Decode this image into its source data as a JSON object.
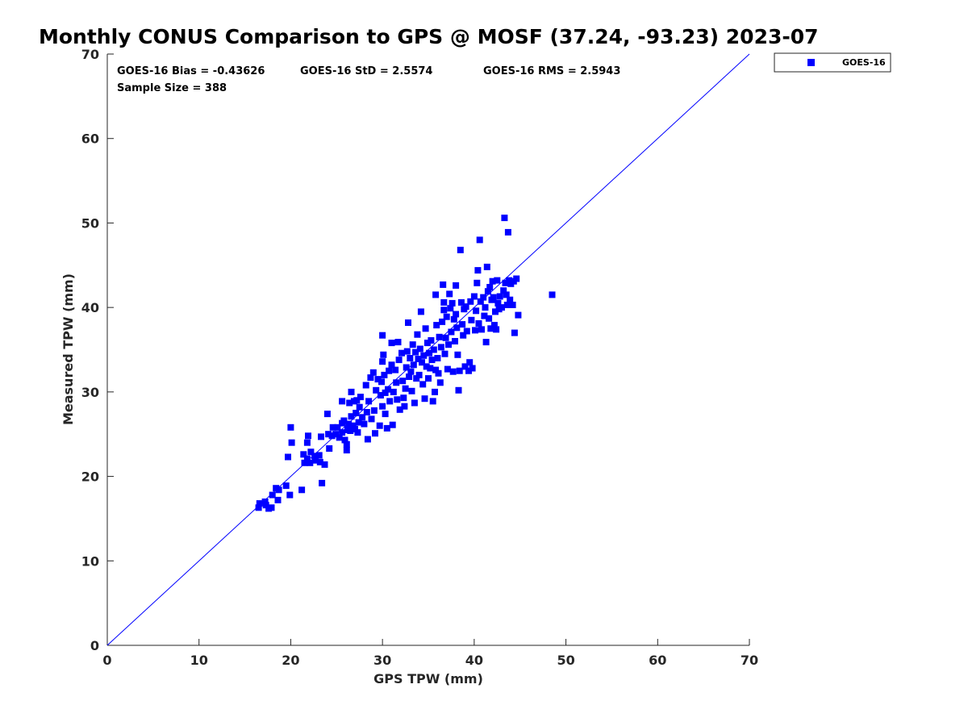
{
  "chart_data": {
    "type": "scatter",
    "title": "Monthly CONUS Comparison to GPS @ MOSF (37.24, -93.23) 2023-07",
    "xlabel": "GPS TPW (mm)",
    "ylabel": "Measured TPW (mm)",
    "xlim": [
      0,
      70
    ],
    "ylim": [
      0,
      70
    ],
    "xticks": [
      "0",
      "10",
      "20",
      "30",
      "40",
      "50",
      "60",
      "70"
    ],
    "yticks": [
      "0",
      "10",
      "20",
      "30",
      "40",
      "50",
      "60",
      "70"
    ],
    "grid": false,
    "legend_position": "top-right outside",
    "stats": {
      "bias": "GOES-16 Bias = -0.43626",
      "std": "GOES-16 StD = 2.5574",
      "rms": "GOES-16 RMS = 2.5943",
      "sample_size": "Sample Size = 388"
    },
    "reference_line": {
      "x": [
        0,
        70
      ],
      "y": [
        0,
        70
      ],
      "color": "#0000ff"
    },
    "series": [
      {
        "name": "GOES-16",
        "color": "#0000ff",
        "marker": "square",
        "points": [
          [
            16.5,
            16.3
          ],
          [
            16.6,
            16.8
          ],
          [
            17.3,
            16.6
          ],
          [
            17.6,
            16.2
          ],
          [
            17.2,
            17.0
          ],
          [
            17.9,
            16.3
          ],
          [
            18.0,
            17.8
          ],
          [
            18.4,
            18.6
          ],
          [
            18.6,
            17.2
          ],
          [
            18.7,
            18.4
          ],
          [
            19.5,
            18.9
          ],
          [
            19.9,
            17.8
          ],
          [
            19.7,
            22.3
          ],
          [
            20.1,
            24.0
          ],
          [
            20.0,
            25.8
          ],
          [
            21.2,
            18.4
          ],
          [
            21.4,
            22.6
          ],
          [
            21.5,
            21.6
          ],
          [
            21.8,
            22.1
          ],
          [
            21.8,
            24.0
          ],
          [
            21.9,
            24.8
          ],
          [
            22.1,
            21.6
          ],
          [
            22.2,
            22.9
          ],
          [
            22.6,
            22.4
          ],
          [
            22.7,
            21.9
          ],
          [
            23.1,
            22.5
          ],
          [
            23.2,
            21.7
          ],
          [
            23.3,
            24.7
          ],
          [
            23.4,
            19.2
          ],
          [
            23.7,
            21.4
          ],
          [
            24.0,
            27.4
          ],
          [
            24.1,
            25.0
          ],
          [
            24.2,
            23.3
          ],
          [
            24.5,
            24.8
          ],
          [
            24.6,
            25.8
          ],
          [
            24.9,
            25.0
          ],
          [
            25.1,
            25.8
          ],
          [
            25.3,
            24.6
          ],
          [
            25.6,
            26.3
          ],
          [
            25.6,
            25.2
          ],
          [
            25.6,
            28.9
          ],
          [
            25.8,
            26.6
          ],
          [
            25.9,
            24.3
          ],
          [
            26.1,
            23.1
          ],
          [
            26.1,
            23.8
          ],
          [
            26.2,
            25.5
          ],
          [
            26.3,
            26.2
          ],
          [
            26.4,
            28.7
          ],
          [
            26.5,
            25.4
          ],
          [
            26.6,
            27.1
          ],
          [
            26.6,
            30.0
          ],
          [
            26.8,
            26.0
          ],
          [
            26.9,
            28.9
          ],
          [
            27.0,
            25.6
          ],
          [
            27.1,
            27.5
          ],
          [
            27.2,
            29.0
          ],
          [
            27.3,
            25.2
          ],
          [
            27.4,
            26.4
          ],
          [
            27.5,
            28.2
          ],
          [
            27.6,
            29.4
          ],
          [
            27.8,
            27.0
          ],
          [
            28.0,
            26.2
          ],
          [
            28.2,
            30.8
          ],
          [
            28.3,
            27.6
          ],
          [
            28.4,
            24.4
          ],
          [
            28.5,
            28.9
          ],
          [
            28.7,
            31.7
          ],
          [
            28.8,
            26.8
          ],
          [
            29.0,
            32.3
          ],
          [
            29.1,
            27.8
          ],
          [
            29.2,
            25.1
          ],
          [
            29.3,
            30.2
          ],
          [
            29.5,
            31.5
          ],
          [
            29.7,
            26.0
          ],
          [
            29.8,
            29.6
          ],
          [
            29.9,
            31.2
          ],
          [
            30.0,
            28.3
          ],
          [
            30.0,
            33.6
          ],
          [
            30.0,
            36.7
          ],
          [
            30.1,
            34.4
          ],
          [
            30.2,
            32.0
          ],
          [
            30.3,
            27.4
          ],
          [
            30.3,
            29.9
          ],
          [
            30.5,
            25.7
          ],
          [
            30.6,
            30.3
          ],
          [
            30.7,
            32.5
          ],
          [
            30.8,
            28.9
          ],
          [
            31.0,
            33.2
          ],
          [
            31.0,
            35.8
          ],
          [
            31.1,
            26.1
          ],
          [
            31.2,
            30.0
          ],
          [
            31.4,
            32.6
          ],
          [
            31.5,
            31.1
          ],
          [
            31.6,
            29.1
          ],
          [
            31.7,
            35.9
          ],
          [
            31.8,
            33.8
          ],
          [
            31.9,
            27.9
          ],
          [
            32.1,
            34.6
          ],
          [
            32.2,
            31.3
          ],
          [
            32.3,
            29.3
          ],
          [
            32.4,
            28.3
          ],
          [
            32.5,
            30.4
          ],
          [
            32.6,
            32.9
          ],
          [
            32.7,
            34.8
          ],
          [
            32.8,
            38.2
          ],
          [
            32.9,
            31.8
          ],
          [
            33.0,
            34.0
          ],
          [
            33.1,
            32.4
          ],
          [
            33.2,
            30.1
          ],
          [
            33.3,
            35.6
          ],
          [
            33.4,
            33.2
          ],
          [
            33.5,
            28.7
          ],
          [
            33.6,
            34.7
          ],
          [
            33.7,
            31.6
          ],
          [
            33.8,
            36.8
          ],
          [
            33.9,
            33.9
          ],
          [
            34.0,
            32.0
          ],
          [
            34.1,
            35.1
          ],
          [
            34.2,
            39.5
          ],
          [
            34.3,
            33.5
          ],
          [
            34.4,
            30.9
          ],
          [
            34.5,
            34.3
          ],
          [
            34.6,
            29.2
          ],
          [
            34.7,
            37.5
          ],
          [
            34.8,
            33.0
          ],
          [
            34.9,
            35.8
          ],
          [
            35.0,
            31.6
          ],
          [
            35.1,
            34.6
          ],
          [
            35.2,
            32.8
          ],
          [
            35.3,
            36.1
          ],
          [
            35.4,
            33.8
          ],
          [
            35.5,
            28.9
          ],
          [
            35.6,
            35.0
          ],
          [
            35.7,
            30.0
          ],
          [
            35.8,
            32.6
          ],
          [
            35.8,
            41.5
          ],
          [
            35.9,
            37.9
          ],
          [
            36.0,
            34.0
          ],
          [
            36.1,
            32.2
          ],
          [
            36.2,
            36.5
          ],
          [
            36.3,
            31.1
          ],
          [
            36.4,
            35.3
          ],
          [
            36.5,
            38.3
          ],
          [
            36.6,
            42.7
          ],
          [
            36.7,
            40.6
          ],
          [
            36.7,
            39.7
          ],
          [
            36.8,
            34.5
          ],
          [
            36.9,
            36.4
          ],
          [
            37.0,
            38.9
          ],
          [
            37.1,
            32.7
          ],
          [
            37.2,
            35.6
          ],
          [
            37.3,
            41.6
          ],
          [
            37.4,
            39.9
          ],
          [
            37.5,
            37.1
          ],
          [
            37.6,
            40.5
          ],
          [
            37.7,
            32.4
          ],
          [
            37.8,
            38.6
          ],
          [
            37.9,
            36.0
          ],
          [
            38.0,
            42.6
          ],
          [
            38.0,
            39.2
          ],
          [
            38.1,
            37.6
          ],
          [
            38.2,
            34.4
          ],
          [
            38.3,
            30.2
          ],
          [
            38.4,
            32.5
          ],
          [
            38.5,
            46.8
          ],
          [
            38.6,
            40.6
          ],
          [
            38.7,
            38.0
          ],
          [
            38.8,
            36.7
          ],
          [
            38.9,
            39.8
          ],
          [
            39.0,
            33.0
          ],
          [
            39.1,
            40.1
          ],
          [
            39.2,
            37.2
          ],
          [
            39.4,
            32.5
          ],
          [
            39.5,
            33.5
          ],
          [
            39.6,
            40.7
          ],
          [
            39.7,
            38.5
          ],
          [
            39.8,
            32.8
          ],
          [
            40.0,
            41.3
          ],
          [
            40.1,
            37.3
          ],
          [
            40.2,
            39.6
          ],
          [
            40.3,
            42.9
          ],
          [
            40.4,
            44.4
          ],
          [
            40.5,
            38.1
          ],
          [
            40.6,
            48.0
          ],
          [
            40.7,
            40.7
          ],
          [
            40.8,
            37.4
          ],
          [
            41.0,
            41.2
          ],
          [
            41.1,
            39.0
          ],
          [
            41.2,
            40.0
          ],
          [
            41.3,
            35.9
          ],
          [
            41.4,
            44.8
          ],
          [
            41.5,
            41.9
          ],
          [
            41.6,
            38.7
          ],
          [
            41.7,
            42.4
          ],
          [
            41.8,
            37.5
          ],
          [
            41.9,
            40.9
          ],
          [
            42.0,
            43.1
          ],
          [
            42.1,
            41.2
          ],
          [
            42.2,
            37.9
          ],
          [
            42.3,
            39.5
          ],
          [
            42.4,
            37.4
          ],
          [
            42.5,
            43.2
          ],
          [
            42.6,
            40.5
          ],
          [
            42.7,
            39.8
          ],
          [
            42.8,
            41.3
          ],
          [
            43.0,
            40.0
          ],
          [
            43.2,
            42.0
          ],
          [
            43.3,
            50.6
          ],
          [
            43.4,
            42.9
          ],
          [
            43.5,
            41.5
          ],
          [
            43.6,
            40.3
          ],
          [
            43.7,
            48.9
          ],
          [
            43.8,
            43.2
          ],
          [
            43.9,
            40.9
          ],
          [
            44.0,
            42.8
          ],
          [
            44.2,
            40.3
          ],
          [
            44.3,
            43.1
          ],
          [
            44.4,
            37.0
          ],
          [
            44.6,
            43.4
          ],
          [
            44.8,
            39.1
          ],
          [
            48.5,
            41.5
          ]
        ]
      }
    ]
  }
}
